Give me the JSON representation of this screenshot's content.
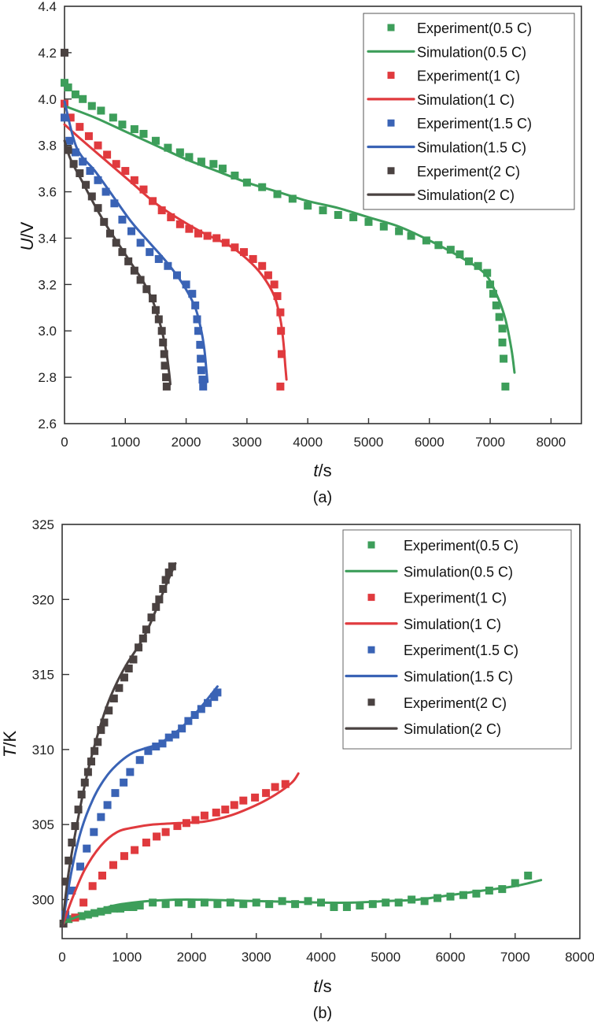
{
  "chart_data": [
    {
      "type": "scatter",
      "panel_label": "(a)",
      "title": "",
      "xlabel": "t/s",
      "xlabel_italic": "t",
      "xlabel_unit": "/s",
      "ylabel": "U/V",
      "ylabel_italic": "U",
      "ylabel_unit": "/V",
      "xlim": [
        0,
        8500
      ],
      "ylim": [
        2.6,
        4.4
      ],
      "xticks": [
        0,
        1000,
        2000,
        3000,
        4000,
        5000,
        6000,
        7000,
        8000
      ],
      "yticks": [
        2.6,
        2.8,
        3.0,
        3.2,
        3.4,
        3.6,
        3.8,
        4.0,
        4.2,
        4.4
      ],
      "ytick_labels": [
        "2.6",
        "2.8",
        "3.0",
        "3.2",
        "3.4",
        "3.6",
        "3.8",
        "4.0",
        "4.2",
        "4.4"
      ],
      "grid": false,
      "legend_position": "top-right",
      "series": [
        {
          "name": "Experiment(0.5 C)",
          "kind": "marker",
          "color": "#3d9e5a",
          "x": [
            0,
            60,
            180,
            300,
            450,
            600,
            800,
            950,
            1150,
            1300,
            1500,
            1700,
            1900,
            2050,
            2250,
            2450,
            2600,
            2800,
            3000,
            3250,
            3500,
            3750,
            4000,
            4250,
            4500,
            4750,
            5000,
            5250,
            5500,
            5700,
            5950,
            6150,
            6350,
            6500,
            6650,
            6800,
            6950,
            7000,
            7050,
            7100,
            7150,
            7200,
            7200,
            7220,
            7250
          ],
          "y": [
            4.07,
            4.05,
            4.02,
            4.0,
            3.97,
            3.95,
            3.92,
            3.89,
            3.87,
            3.85,
            3.82,
            3.79,
            3.77,
            3.75,
            3.73,
            3.72,
            3.7,
            3.67,
            3.64,
            3.62,
            3.59,
            3.57,
            3.54,
            3.52,
            3.5,
            3.49,
            3.47,
            3.45,
            3.43,
            3.41,
            3.39,
            3.37,
            3.35,
            3.33,
            3.3,
            3.28,
            3.25,
            3.2,
            3.16,
            3.11,
            3.06,
            3.01,
            2.95,
            2.88,
            2.76
          ]
        },
        {
          "name": "Simulation(0.5 C)",
          "kind": "line",
          "color": "#3d9e5a",
          "x": [
            0,
            500,
            1000,
            1500,
            2000,
            2500,
            3000,
            3500,
            4000,
            4500,
            5000,
            5500,
            6000,
            6500,
            6900,
            7100,
            7250,
            7350,
            7400
          ],
          "y": [
            3.97,
            3.92,
            3.86,
            3.8,
            3.74,
            3.69,
            3.64,
            3.6,
            3.56,
            3.53,
            3.49,
            3.45,
            3.39,
            3.32,
            3.25,
            3.16,
            3.05,
            2.92,
            2.82
          ]
        },
        {
          "name": "Experiment(1 C)",
          "kind": "marker",
          "color": "#e03a3e",
          "x": [
            0,
            100,
            250,
            400,
            550,
            700,
            850,
            1000,
            1150,
            1300,
            1450,
            1600,
            1750,
            1900,
            2050,
            2200,
            2350,
            2500,
            2650,
            2800,
            2950,
            3100,
            3250,
            3350,
            3450,
            3500,
            3550,
            3560,
            3570,
            3550
          ],
          "y": [
            3.98,
            3.92,
            3.88,
            3.84,
            3.8,
            3.76,
            3.72,
            3.69,
            3.65,
            3.61,
            3.56,
            3.52,
            3.49,
            3.46,
            3.44,
            3.42,
            3.41,
            3.4,
            3.38,
            3.36,
            3.34,
            3.31,
            3.28,
            3.24,
            3.2,
            3.15,
            3.08,
            3.0,
            2.9,
            2.76
          ]
        },
        {
          "name": "Simulation(1 C)",
          "kind": "line",
          "color": "#e03a3e",
          "x": [
            0,
            300,
            700,
            1100,
            1500,
            1900,
            2300,
            2700,
            3000,
            3250,
            3450,
            3550,
            3600,
            3630,
            3650
          ],
          "y": [
            3.89,
            3.82,
            3.73,
            3.64,
            3.55,
            3.48,
            3.42,
            3.37,
            3.31,
            3.24,
            3.15,
            3.05,
            2.95,
            2.85,
            2.79
          ]
        },
        {
          "name": "Experiment(1.5 C)",
          "kind": "marker",
          "color": "#3a63b5",
          "x": [
            0,
            80,
            180,
            300,
            420,
            550,
            680,
            820,
            950,
            1100,
            1250,
            1400,
            1550,
            1700,
            1850,
            2000,
            2100,
            2150,
            2180,
            2200,
            2230,
            2240,
            2250,
            2270,
            2280
          ],
          "y": [
            3.92,
            3.82,
            3.77,
            3.73,
            3.69,
            3.65,
            3.6,
            3.55,
            3.48,
            3.43,
            3.38,
            3.34,
            3.31,
            3.28,
            3.24,
            3.2,
            3.16,
            3.11,
            3.05,
            3.0,
            2.94,
            2.88,
            2.83,
            2.79,
            2.76
          ]
        },
        {
          "name": "Simulation(1.5 C)",
          "kind": "line",
          "color": "#3a63b5",
          "x": [
            0,
            200,
            500,
            800,
            1100,
            1400,
            1700,
            1950,
            2150,
            2250,
            2300,
            2330,
            2350
          ],
          "y": [
            3.99,
            3.79,
            3.69,
            3.58,
            3.47,
            3.38,
            3.29,
            3.2,
            3.1,
            3.0,
            2.92,
            2.84,
            2.78
          ]
        },
        {
          "name": "Experiment(2 C)",
          "kind": "marker",
          "color": "#4a4241",
          "x": [
            0,
            60,
            150,
            250,
            350,
            450,
            550,
            650,
            750,
            850,
            950,
            1050,
            1150,
            1250,
            1350,
            1450,
            1500,
            1550,
            1600,
            1620,
            1640,
            1650,
            1670,
            1680
          ],
          "y": [
            4.2,
            3.78,
            3.72,
            3.68,
            3.63,
            3.58,
            3.53,
            3.47,
            3.42,
            3.38,
            3.34,
            3.3,
            3.26,
            3.22,
            3.18,
            3.14,
            3.09,
            3.05,
            3.0,
            2.95,
            2.9,
            2.85,
            2.8,
            2.76
          ]
        },
        {
          "name": "Simulation(2 C)",
          "kind": "line",
          "color": "#4a4241",
          "x": [
            0,
            100,
            300,
            500,
            700,
            900,
            1100,
            1300,
            1450,
            1550,
            1620,
            1680,
            1720,
            1740
          ],
          "y": [
            3.82,
            3.74,
            3.64,
            3.54,
            3.45,
            3.37,
            3.29,
            3.21,
            3.13,
            3.05,
            2.98,
            2.9,
            2.82,
            2.77
          ]
        }
      ]
    },
    {
      "type": "scatter",
      "panel_label": "(b)",
      "title": "",
      "xlabel": "t/s",
      "xlabel_italic": "t",
      "xlabel_unit": "/s",
      "ylabel": "T/K",
      "ylabel_italic": "T",
      "ylabel_unit": "/K",
      "xlim": [
        0,
        8000
      ],
      "ylim": [
        297.4,
        325
      ],
      "xticks": [
        0,
        1000,
        2000,
        3000,
        4000,
        5000,
        6000,
        7000,
        8000
      ],
      "yticks": [
        300,
        305,
        310,
        315,
        320,
        325
      ],
      "ytick_labels": [
        "300",
        "305",
        "310",
        "315",
        "320",
        "325"
      ],
      "grid": false,
      "legend_position": "top-right",
      "series": [
        {
          "name": "Experiment(0.5 C)",
          "kind": "marker",
          "color": "#3d9e5a",
          "x": [
            100,
            200,
            300,
            400,
            500,
            600,
            700,
            800,
            900,
            1000,
            1100,
            1200,
            1400,
            1600,
            1800,
            2000,
            2200,
            2400,
            2600,
            2800,
            3000,
            3200,
            3400,
            3600,
            3800,
            4000,
            4200,
            4400,
            4600,
            4800,
            5000,
            5200,
            5400,
            5600,
            5800,
            6000,
            6200,
            6400,
            6600,
            6800,
            7000,
            7200
          ],
          "y": [
            298.7,
            298.8,
            298.9,
            299.0,
            299.1,
            299.2,
            299.3,
            299.4,
            299.4,
            299.5,
            299.5,
            299.6,
            299.8,
            299.7,
            299.8,
            299.7,
            299.8,
            299.7,
            299.8,
            299.7,
            299.8,
            299.7,
            299.9,
            299.7,
            299.9,
            299.8,
            299.5,
            299.5,
            299.6,
            299.7,
            299.8,
            299.8,
            300.0,
            299.9,
            300.1,
            300.2,
            300.3,
            300.4,
            300.6,
            300.7,
            301.1,
            301.6
          ]
        },
        {
          "name": "Simulation(0.5 C)",
          "kind": "line",
          "color": "#3d9e5a",
          "x": [
            0,
            200,
            500,
            800,
            1100,
            1500,
            2000,
            3000,
            4000,
            4500,
            5000,
            5500,
            6000,
            6500,
            7000,
            7400
          ],
          "y": [
            298.4,
            298.8,
            299.2,
            299.6,
            299.8,
            299.95,
            300.0,
            299.9,
            299.8,
            299.8,
            299.9,
            300.0,
            300.3,
            300.6,
            300.9,
            301.3
          ]
        },
        {
          "name": "Experiment(1 C)",
          "kind": "marker",
          "color": "#e03a3e",
          "x": [
            200,
            330,
            470,
            620,
            790,
            960,
            1120,
            1300,
            1460,
            1600,
            1780,
            1920,
            2060,
            2200,
            2380,
            2520,
            2660,
            2800,
            2980,
            3150,
            3290,
            3450
          ],
          "y": [
            298.8,
            299.8,
            300.9,
            301.6,
            302.3,
            302.9,
            303.3,
            303.8,
            304.2,
            304.5,
            304.9,
            305.1,
            305.3,
            305.6,
            305.8,
            306.0,
            306.3,
            306.6,
            306.8,
            307.1,
            307.5,
            307.7
          ]
        },
        {
          "name": "Simulation(1 C)",
          "kind": "line",
          "color": "#e03a3e",
          "x": [
            0,
            150,
            350,
            600,
            850,
            1100,
            1400,
            1800,
            2200,
            2600,
            3000,
            3300,
            3550,
            3650
          ],
          "y": [
            298.2,
            300.0,
            302.0,
            303.6,
            304.5,
            304.8,
            305.0,
            305.1,
            305.2,
            305.6,
            306.3,
            307.0,
            307.8,
            308.4
          ]
        },
        {
          "name": "Experiment(1.5 C)",
          "kind": "marker",
          "color": "#3a63b5",
          "x": [
            50,
            150,
            280,
            380,
            490,
            600,
            700,
            820,
            950,
            1050,
            1200,
            1330,
            1450,
            1550,
            1650,
            1750,
            1850,
            1950,
            2050,
            2150,
            2250,
            2350,
            2400
          ],
          "y": [
            299.0,
            300.6,
            302.2,
            303.4,
            304.5,
            305.5,
            306.3,
            307.1,
            307.8,
            308.5,
            309.3,
            309.9,
            310.2,
            310.4,
            310.8,
            311.0,
            311.4,
            311.9,
            312.3,
            312.7,
            313.1,
            313.5,
            313.8
          ]
        },
        {
          "name": "Simulation(1.5 C)",
          "kind": "line",
          "color": "#3a63b5",
          "x": [
            0,
            150,
            300,
            500,
            700,
            900,
            1100,
            1300,
            1500,
            1800,
            2100,
            2400
          ],
          "y": [
            298.2,
            302.0,
            304.7,
            306.9,
            308.3,
            309.2,
            309.8,
            310.1,
            310.4,
            311.3,
            312.6,
            314.2
          ]
        },
        {
          "name": "Experiment(2 C)",
          "kind": "marker",
          "color": "#4a4241",
          "x": [
            20,
            50,
            100,
            150,
            200,
            250,
            300,
            350,
            400,
            450,
            500,
            550,
            600,
            650,
            720,
            800,
            880,
            960,
            1030,
            1100,
            1180,
            1250,
            1300,
            1380,
            1450,
            1500,
            1560,
            1600,
            1650,
            1700
          ],
          "y": [
            298.4,
            301.2,
            302.6,
            303.8,
            304.9,
            306.0,
            307.0,
            307.8,
            308.5,
            309.2,
            309.9,
            310.5,
            311.3,
            311.8,
            312.6,
            313.4,
            314.1,
            314.8,
            315.4,
            316.0,
            316.8,
            317.4,
            318.0,
            318.8,
            319.5,
            320.0,
            320.7,
            321.3,
            321.8,
            322.2
          ]
        },
        {
          "name": "Simulation(2 C)",
          "kind": "line",
          "color": "#4a4241",
          "x": [
            0,
            100,
            250,
            400,
            550,
            700,
            850,
            1000,
            1150,
            1300,
            1450,
            1600,
            1750
          ],
          "y": [
            298.2,
            301.8,
            305.5,
            308.6,
            311.0,
            313.0,
            314.5,
            315.7,
            316.7,
            317.8,
            319.3,
            320.9,
            322.4
          ]
        }
      ]
    }
  ]
}
